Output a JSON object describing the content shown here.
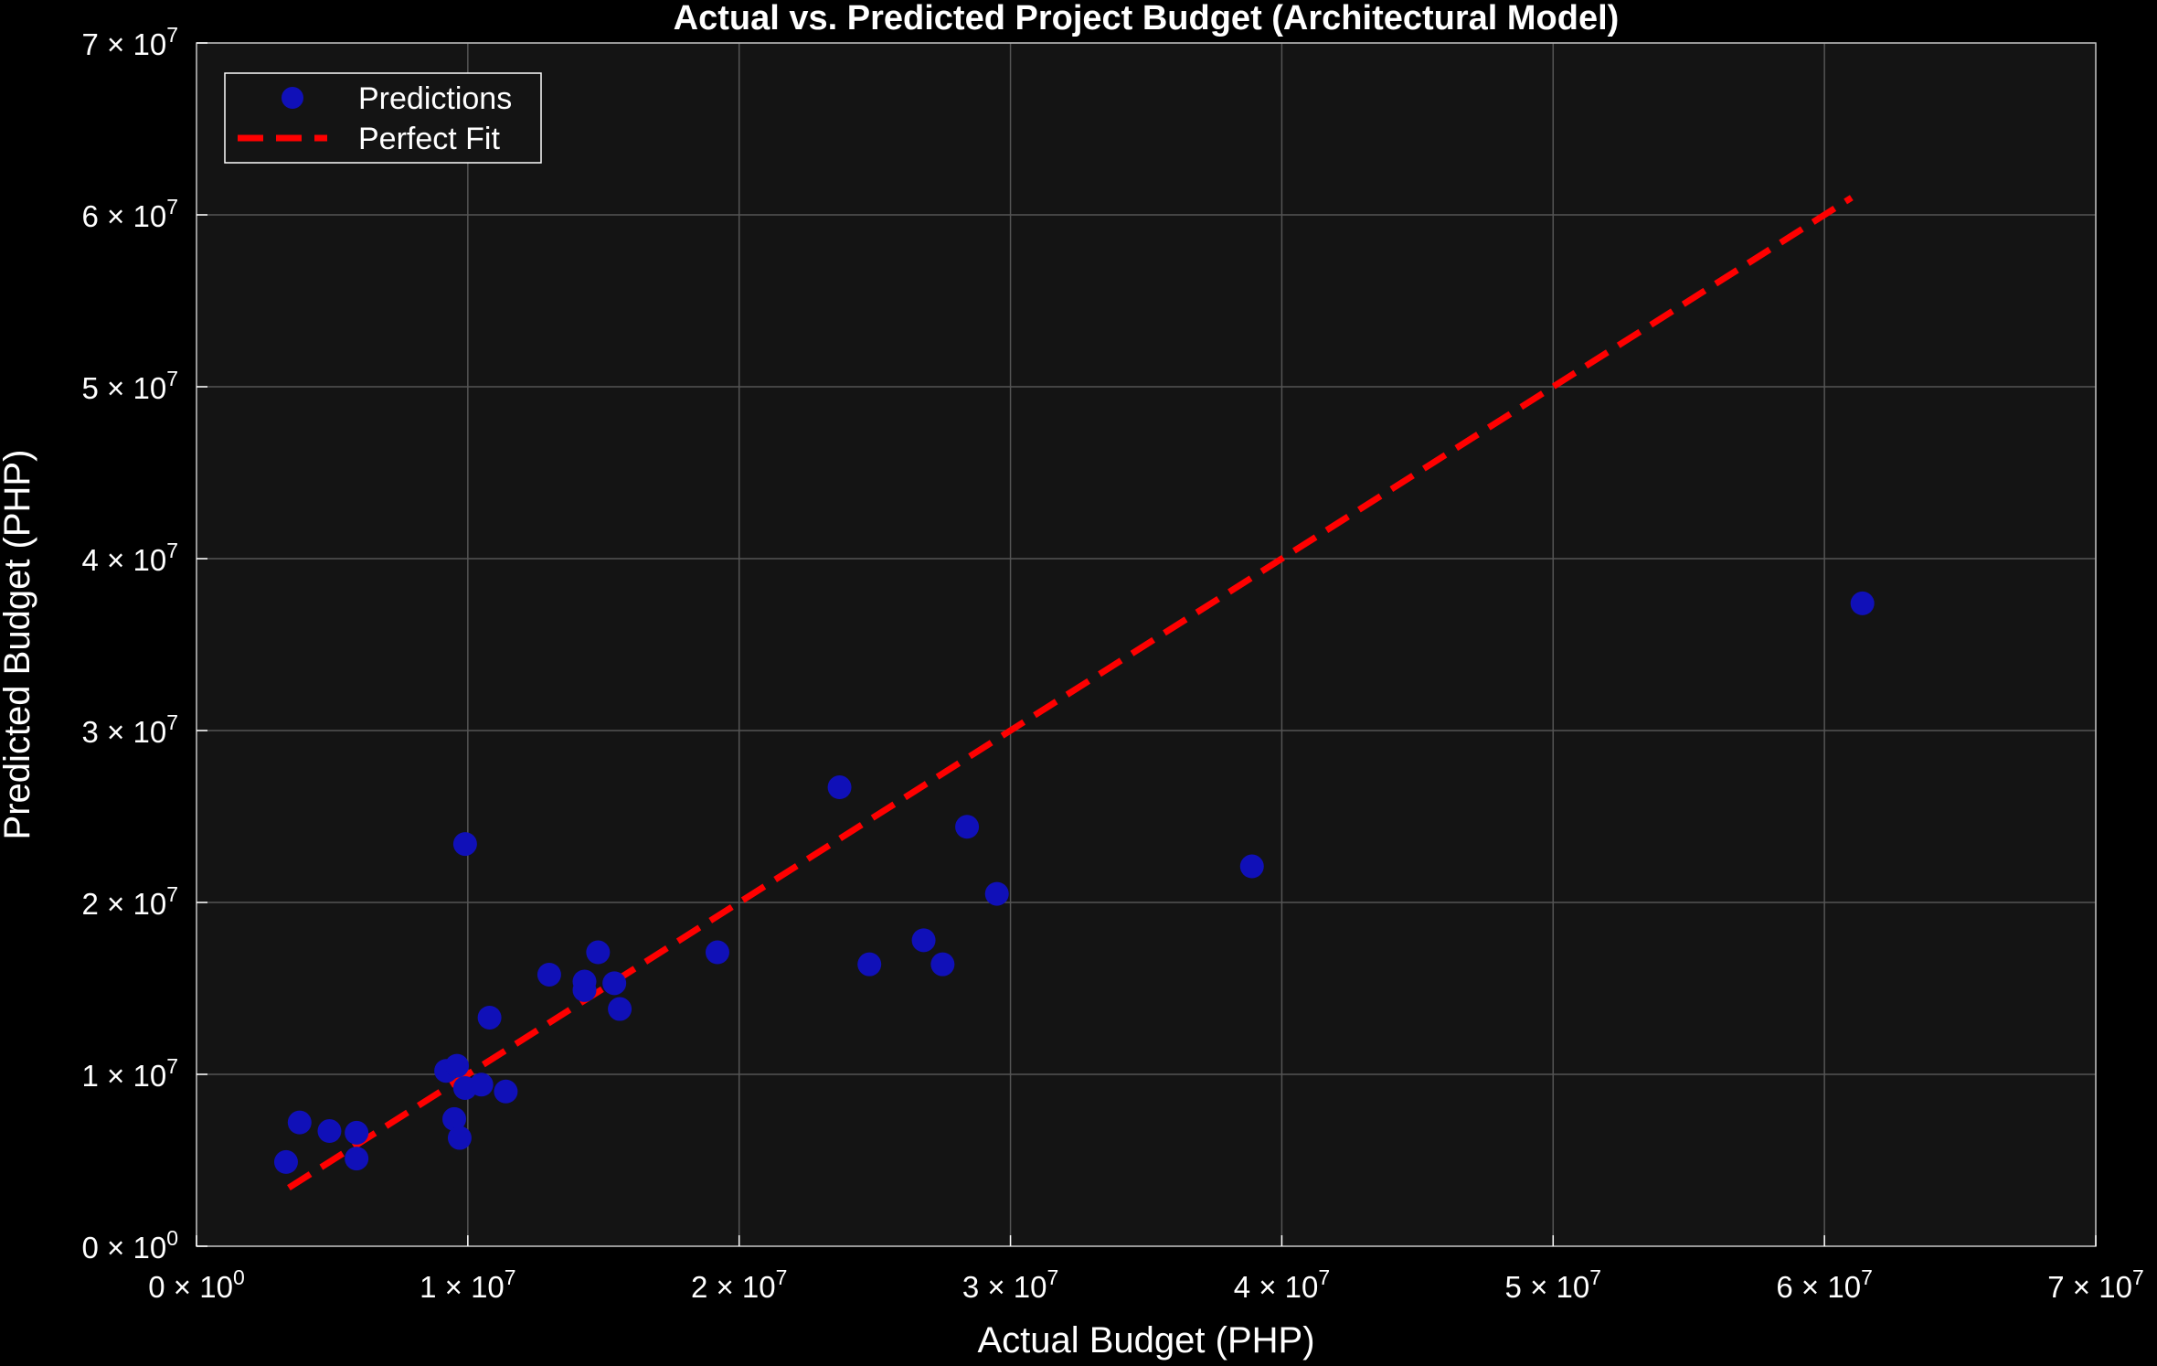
{
  "chart_data": {
    "type": "scatter",
    "title": "Actual vs. Predicted Project Budget (Architectural Model)",
    "xlabel": "Actual Budget (PHP)",
    "ylabel": "Predicted Budget (PHP)",
    "xlim": [
      0,
      70000000
    ],
    "ylim": [
      0,
      70000000
    ],
    "x_ticks": [
      {
        "value": 0,
        "mantissa": "0",
        "exponent": "0"
      },
      {
        "value": 10000000,
        "mantissa": "1",
        "exponent": "7"
      },
      {
        "value": 20000000,
        "mantissa": "2",
        "exponent": "7"
      },
      {
        "value": 30000000,
        "mantissa": "3",
        "exponent": "7"
      },
      {
        "value": 40000000,
        "mantissa": "4",
        "exponent": "7"
      },
      {
        "value": 50000000,
        "mantissa": "5",
        "exponent": "7"
      },
      {
        "value": 60000000,
        "mantissa": "6",
        "exponent": "7"
      },
      {
        "value": 70000000,
        "mantissa": "7",
        "exponent": "7"
      }
    ],
    "y_ticks": [
      {
        "value": 0,
        "mantissa": "0",
        "exponent": "0"
      },
      {
        "value": 10000000,
        "mantissa": "1",
        "exponent": "7"
      },
      {
        "value": 20000000,
        "mantissa": "2",
        "exponent": "7"
      },
      {
        "value": 30000000,
        "mantissa": "3",
        "exponent": "7"
      },
      {
        "value": 40000000,
        "mantissa": "4",
        "exponent": "7"
      },
      {
        "value": 50000000,
        "mantissa": "5",
        "exponent": "7"
      },
      {
        "value": 60000000,
        "mantissa": "6",
        "exponent": "7"
      },
      {
        "value": 70000000,
        "mantissa": "7",
        "exponent": "7"
      }
    ],
    "grid": true,
    "legend_position": "top-left",
    "background_color": "#141414",
    "grid_color": "#555555",
    "series": [
      {
        "name": "Predictions",
        "kind": "scatter",
        "color": "#1010b8",
        "points": [
          {
            "x": 3300000,
            "y": 4900000
          },
          {
            "x": 3800000,
            "y": 7200000
          },
          {
            "x": 4900000,
            "y": 6700000
          },
          {
            "x": 5900000,
            "y": 6600000
          },
          {
            "x": 5900000,
            "y": 5100000
          },
          {
            "x": 9200000,
            "y": 10200000
          },
          {
            "x": 9600000,
            "y": 10500000
          },
          {
            "x": 9500000,
            "y": 7400000
          },
          {
            "x": 9700000,
            "y": 6300000
          },
          {
            "x": 9900000,
            "y": 9200000
          },
          {
            "x": 9900000,
            "y": 23400000
          },
          {
            "x": 10500000,
            "y": 9400000
          },
          {
            "x": 10800000,
            "y": 13300000
          },
          {
            "x": 11400000,
            "y": 9000000
          },
          {
            "x": 13000000,
            "y": 15800000
          },
          {
            "x": 14300000,
            "y": 14900000
          },
          {
            "x": 14300000,
            "y": 15400000
          },
          {
            "x": 14800000,
            "y": 17100000
          },
          {
            "x": 15400000,
            "y": 15300000
          },
          {
            "x": 15600000,
            "y": 13800000
          },
          {
            "x": 19200000,
            "y": 17100000
          },
          {
            "x": 23700000,
            "y": 26700000
          },
          {
            "x": 24800000,
            "y": 16400000
          },
          {
            "x": 26800000,
            "y": 17800000
          },
          {
            "x": 27500000,
            "y": 16400000
          },
          {
            "x": 28400000,
            "y": 24400000
          },
          {
            "x": 29500000,
            "y": 20500000
          },
          {
            "x": 38900000,
            "y": 22100000
          },
          {
            "x": 61400000,
            "y": 37400000
          }
        ]
      },
      {
        "name": "Perfect Fit",
        "kind": "line",
        "style": "dashed",
        "color": "#ff0000",
        "points": [
          {
            "x": 3400000,
            "y": 3400000
          },
          {
            "x": 61000000,
            "y": 61000000
          }
        ]
      }
    ]
  }
}
